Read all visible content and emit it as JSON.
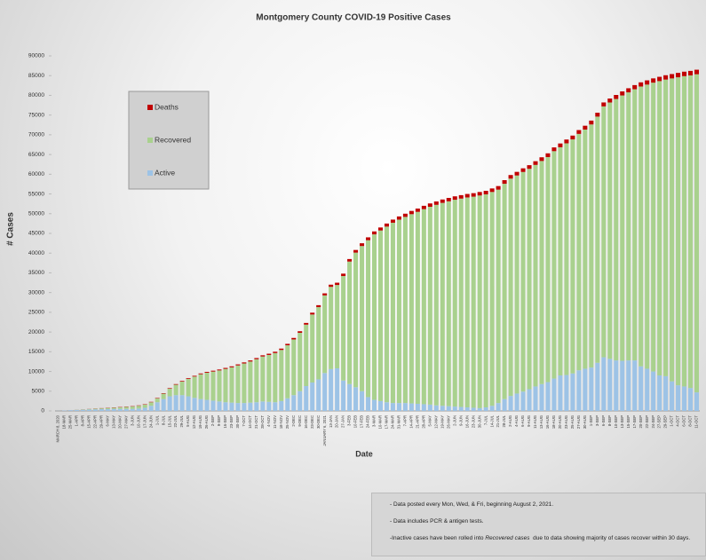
{
  "chart_data": {
    "type": "stacked_bar",
    "title": "Montgomery County COVID-19 Positive Cases",
    "x_label": "Date",
    "y_label": "# Cases",
    "categories": [
      "MARCH 8, 2020",
      "18-MAR",
      "25-MAR",
      "1-APR",
      "8-APR",
      "15-APR",
      "22-APR",
      "29-APR",
      "6-MAY",
      "13-MAY",
      "20-MAY",
      "27-MAY",
      "3-JUN",
      "10-JUN",
      "17-JUN",
      "24-JUN",
      "1-JUL",
      "8-JUL",
      "15-JUL",
      "22-JUL",
      "29-JUL",
      "5-AUG",
      "12-AUG",
      "19-AUG",
      "26-AUG",
      "2-SEP",
      "9-SEP",
      "16-SEP",
      "23-SEP",
      "30-SEP",
      "7-OCT",
      "14-OCT",
      "21-OCT",
      "28-OCT",
      "4-NOV",
      "11-NOV",
      "18-NOV",
      "25-NOV",
      "2-DEC",
      "9-DEC",
      "16-DEC",
      "23-DEC",
      "30-DEC",
      "JANUARY 6, 2021",
      "13-JAN",
      "20-JAN",
      "27-JAN",
      "3-FEB",
      "10-FEB",
      "17-FEB",
      "24-FEB",
      "3-MAR",
      "10-MAR",
      "17-MAR",
      "24-MAR",
      "31-MAR",
      "7-APR",
      "14-APR",
      "21-APR",
      "28-APR",
      "5-MAY",
      "12-MAY",
      "19-MAY",
      "26-MAY",
      "2-JUN",
      "9-JUN",
      "16-JUN",
      "23-JUN",
      "30-JUN",
      "7-JUL",
      "14-JUL",
      "21-JUL",
      "28-JUL",
      "2-AUG",
      "4-AUG",
      "6-AUG",
      "9-AUG",
      "11-AUG",
      "13-AUG",
      "16-AUG",
      "18-AUG",
      "20-AUG",
      "23-AUG",
      "25-AUG",
      "27-AUG",
      "30-AUG",
      "1-SEP",
      "3-SEP",
      "6-SEP",
      "8-SEP",
      "10-SEP",
      "13-SEP",
      "15-SEP",
      "17-SEP",
      "20-SEP",
      "22-SEP",
      "24-SEP",
      "27-SEP",
      "29-SEP",
      "1-OCT",
      "4-OCT",
      "6-OCT",
      "8-OCT",
      "11-OCT"
    ],
    "series": [
      {
        "name": "Active",
        "color": "#9dc3e6",
        "values": [
          20,
          98,
          190,
          250,
          300,
          350,
          400,
          450,
          450,
          500,
          500,
          500,
          500,
          600,
          800,
          1300,
          2200,
          3000,
          3700,
          4000,
          4000,
          3700,
          3300,
          3000,
          2800,
          2600,
          2400,
          2200,
          2100,
          2000,
          2000,
          2100,
          2200,
          2400,
          2300,
          2200,
          2500,
          3200,
          4000,
          5000,
          6300,
          7200,
          8000,
          9600,
          10600,
          10800,
          7700,
          6800,
          6000,
          5000,
          3500,
          2800,
          2500,
          2200,
          2000,
          2000,
          2000,
          1900,
          1800,
          1700,
          1600,
          1400,
          1300,
          1200,
          1100,
          1000,
          900,
          800,
          700,
          900,
          1300,
          2000,
          3000,
          3800,
          4400,
          4900,
          5500,
          6200,
          6800,
          7300,
          8200,
          9000,
          9100,
          9500,
          10300,
          10700,
          11000,
          12200,
          13600,
          13200,
          12800,
          12700,
          12800,
          12800,
          11300,
          10700,
          10000,
          9000,
          8800,
          7500,
          6500,
          6200,
          5800,
          4700
        ]
      },
      {
        "name": "Recovered",
        "color": "#a9d18e",
        "values": [
          0,
          0,
          5,
          40,
          80,
          120,
          160,
          200,
          290,
          330,
          425,
          520,
          615,
          710,
          805,
          900,
          990,
          1380,
          1965,
          2650,
          3435,
          4420,
          5405,
          6295,
          6885,
          7375,
          7865,
          8455,
          8945,
          9535,
          10025,
          10415,
          10905,
          11395,
          11885,
          12470,
          12955,
          13440,
          14120,
          14800,
          15570,
          17240,
          18310,
          19680,
          20850,
          21120,
          26490,
          31060,
          34130,
          36800,
          39780,
          41960,
          43240,
          44525,
          45710,
          46495,
          47185,
          47975,
          48665,
          49455,
          50150,
          50845,
          51440,
          51935,
          52430,
          52825,
          53220,
          53515,
          53910,
          54005,
          54200,
          54095,
          54590,
          55085,
          55280,
          55675,
          55870,
          56165,
          56560,
          57055,
          57650,
          57845,
          58740,
          59335,
          59930,
          60625,
          61620,
          62410,
          63600,
          64990,
          66280,
          67270,
          67960,
          68750,
          70940,
          72030,
          73220,
          74610,
          75200,
          76790,
          78080,
          78670,
          79260,
          80650
        ]
      },
      {
        "name": "Deaths",
        "color": "#c00000",
        "values": [
          0,
          2,
          5,
          10,
          20,
          30,
          40,
          50,
          60,
          70,
          75,
          80,
          85,
          90,
          95,
          100,
          110,
          120,
          135,
          150,
          165,
          180,
          195,
          205,
          215,
          225,
          235,
          245,
          255,
          265,
          275,
          285,
          295,
          305,
          315,
          330,
          345,
          360,
          380,
          400,
          430,
          460,
          490,
          520,
          550,
          580,
          610,
          640,
          670,
          700,
          720,
          740,
          760,
          775,
          790,
          805,
          815,
          825,
          835,
          845,
          850,
          855,
          860,
          865,
          870,
          875,
          880,
          885,
          890,
          895,
          900,
          905,
          910,
          915,
          920,
          925,
          930,
          935,
          940,
          945,
          950,
          955,
          960,
          965,
          970,
          975,
          980,
          990,
          1000,
          1010,
          1020,
          1030,
          1040,
          1050,
          1060,
          1070,
          1080,
          1090,
          1100,
          1110,
          1120,
          1130,
          1140,
          1150
        ]
      }
    ],
    "ylim": [
      0,
      90000
    ],
    "yticks": [
      0,
      5000,
      10000,
      15000,
      20000,
      25000,
      30000,
      35000,
      40000,
      45000,
      50000,
      55000,
      60000,
      65000,
      70000,
      75000,
      80000,
      85000,
      90000
    ],
    "legend": "upper left",
    "notes": [
      "- Data posted every Mon, Wed, & Fri, beginning August 2, 2021.",
      "- Data includes PCR & antigen tests.",
      "-Inactive cases have been rolled into ",
      "Recovered cases",
      "  due to data showing majority of cases recover within 30 days."
    ]
  }
}
